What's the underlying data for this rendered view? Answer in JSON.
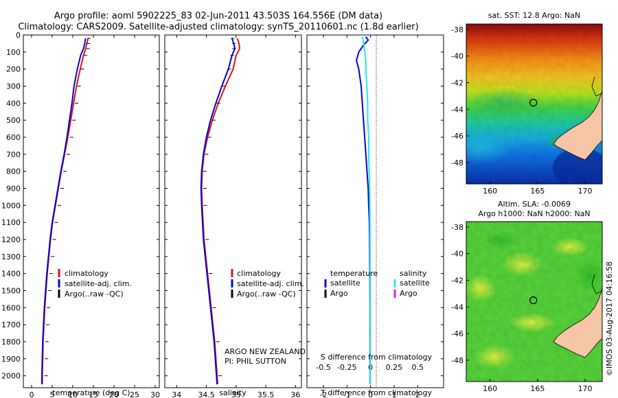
{
  "figure": {
    "title_line1": "Argo profile: aoml 5902225_83 02-Jun-2011 43.503S 164.556E (DM data)",
    "title_line2": "Climatology: CARS2009. Satellite-adjusted climatology: synTS_20110601.nc (1.8d earlier)",
    "credit": "©IMOS 03-Aug-2017 04:16:58",
    "float_group_line1": "ARGO NEW ZEALAND",
    "float_group_line2": "PI: PHIL SUTTON"
  },
  "colors": {
    "climatology": "#e01010",
    "satellite": "#0000dd",
    "argo": "#000000",
    "satellite_salinity": "#22e6f0",
    "argo_salinity": "#e020e0",
    "land": "#f5c6a5"
  },
  "chart_data": [
    {
      "id": "temperature",
      "type": "line",
      "xlabel": "temperature (deg C)",
      "ylabel": "",
      "xlim": [
        -2,
        31
      ],
      "ylim": [
        2070,
        0
      ],
      "xticks": [
        0,
        5,
        10,
        15,
        20,
        25,
        30
      ],
      "yticks": [
        0,
        100,
        200,
        300,
        400,
        500,
        600,
        700,
        800,
        900,
        1000,
        1100,
        1200,
        1300,
        1400,
        1500,
        1600,
        1700,
        1800,
        1900,
        2000
      ],
      "legend": [
        "climatology",
        "satellite-adj. clim.",
        "Argo(..raw -QC)"
      ],
      "series": [
        {
          "name": "climatology",
          "depth": [
            20,
            50,
            80,
            120,
            200,
            300,
            400,
            500,
            600,
            700,
            800,
            900,
            1000,
            1100,
            1200,
            1300,
            1400,
            1500,
            1600,
            1700,
            1800,
            1900,
            2000,
            2050
          ],
          "values": [
            13.7,
            13.4,
            13.1,
            12.6,
            11.8,
            10.9,
            10.2,
            9.5,
            8.8,
            8.0,
            7.2,
            6.5,
            5.8,
            5.1,
            4.6,
            4.2,
            3.8,
            3.5,
            3.2,
            3.0,
            2.8,
            2.7,
            2.6,
            2.6
          ]
        },
        {
          "name": "satellite-adj. clim.",
          "depth": [
            20,
            50,
            80,
            120,
            200,
            300,
            400,
            500,
            600,
            700,
            800,
            900,
            1000,
            1100,
            1200,
            1300,
            1400,
            1500,
            1600,
            1700,
            1800,
            1900,
            2000,
            2050
          ],
          "values": [
            13.1,
            12.9,
            12.6,
            11.9,
            11.1,
            10.3,
            9.8,
            9.2,
            8.6,
            7.9,
            7.1,
            6.4,
            5.7,
            5.0,
            4.5,
            4.1,
            3.7,
            3.4,
            3.1,
            2.9,
            2.7,
            2.6,
            2.5,
            2.5
          ]
        },
        {
          "name": "Argo(..raw -QC)",
          "depth": [
            20,
            50,
            80,
            120,
            200,
            300,
            400,
            500,
            600,
            700,
            800,
            900,
            1000,
            1100,
            1200,
            1300,
            1400,
            1500,
            1600,
            1700,
            1800,
            1900,
            2000
          ],
          "values": [
            13.0,
            12.9,
            12.8,
            12.2,
            11.4,
            10.6,
            10.0,
            9.4,
            8.8,
            8.0,
            7.2,
            6.5,
            5.8,
            5.1,
            4.6,
            4.2,
            3.8,
            3.5,
            3.2,
            3.0,
            2.8,
            2.7,
            2.6
          ]
        }
      ]
    },
    {
      "id": "salinity",
      "type": "line",
      "xlabel": "salinity",
      "ylabel": "",
      "xlim": [
        33.8,
        36.1
      ],
      "ylim": [
        2070,
        0
      ],
      "xticks": [
        34,
        34.5,
        35,
        35.5,
        36
      ],
      "legend": [
        "climatology",
        "satellite-adj. clim.",
        "Argo(..raw -QC)"
      ],
      "series": [
        {
          "name": "climatology",
          "depth": [
            20,
            50,
            80,
            120,
            200,
            300,
            400,
            500,
            600,
            700,
            800,
            900,
            1000,
            1200,
            1400,
            1600,
            1800,
            2000,
            2050
          ],
          "values": [
            35.02,
            35.05,
            35.06,
            35.0,
            34.95,
            34.82,
            34.7,
            34.6,
            34.52,
            34.46,
            34.43,
            34.42,
            34.43,
            34.46,
            34.52,
            34.58,
            34.64,
            34.68,
            34.69
          ]
        },
        {
          "name": "satellite-adj. clim.",
          "depth": [
            20,
            50,
            80,
            120,
            200,
            300,
            400,
            500,
            600,
            700,
            800,
            900,
            1000,
            1200,
            1400,
            1600,
            1800,
            2000,
            2050
          ],
          "values": [
            34.93,
            34.96,
            34.98,
            34.93,
            34.87,
            34.76,
            34.66,
            34.57,
            34.5,
            34.45,
            34.42,
            34.41,
            34.42,
            34.45,
            34.51,
            34.57,
            34.63,
            34.67,
            34.68
          ]
        },
        {
          "name": "Argo(..raw -QC)",
          "depth": [
            20,
            50,
            80,
            120,
            200,
            300,
            400,
            500,
            600,
            700,
            800,
            900,
            1000,
            1200,
            1400,
            1600,
            1800,
            2000
          ],
          "values": [
            34.88,
            34.9,
            34.9,
            34.87,
            34.82,
            34.73,
            34.64,
            34.56,
            34.49,
            34.44,
            34.41,
            34.41,
            34.42,
            34.45,
            34.51,
            34.57,
            34.63,
            34.67
          ]
        }
      ]
    },
    {
      "id": "difference",
      "type": "line",
      "xlabel": "T difference from climatology",
      "top_label": "S difference from climatology",
      "xlim": [
        -2.7,
        3.1
      ],
      "ylim": [
        2070,
        0
      ],
      "xticks": [
        -2,
        -1,
        0,
        1,
        2
      ],
      "top_ticks_label": [
        "-0.5",
        "-0.25",
        "0",
        "0.25",
        "0.5"
      ],
      "top_ticks": [
        -0.5,
        -0.25,
        0,
        0.25,
        0.5
      ],
      "legend_temperature_heading": "temperature",
      "legend_salinity_heading": "salinity",
      "legend_satellite": "satellite",
      "legend_argo": "Argo",
      "series": [
        {
          "name": "temperature satellite",
          "depth": [
            10,
            30,
            60,
            100,
            150,
            200,
            300,
            400,
            500,
            600,
            700,
            800,
            900,
            1000,
            1100,
            1200,
            1400,
            1600,
            1800,
            2000,
            2050
          ],
          "values": [
            -0.2,
            -0.1,
            -0.3,
            -0.5,
            -0.6,
            -0.5,
            -0.4,
            -0.35,
            -0.3,
            -0.25,
            -0.2,
            -0.15,
            -0.1,
            -0.08,
            -0.05,
            -0.04,
            -0.03,
            -0.02,
            -0.02,
            -0.02,
            -0.02
          ]
        },
        {
          "name": "salinity satellite",
          "depth": [
            10,
            30,
            60,
            100,
            150,
            200,
            300,
            400,
            500,
            600,
            700,
            800,
            900,
            1000,
            1100,
            1200,
            1400,
            1600,
            1800,
            2000,
            2050
          ],
          "values": [
            -0.09,
            -0.08,
            -0.07,
            -0.06,
            -0.05,
            -0.05,
            -0.04,
            -0.03,
            -0.03,
            -0.02,
            -0.02,
            -0.015,
            -0.01,
            -0.008,
            -0.006,
            -0.005,
            -0.004,
            -0.003,
            -0.003,
            -0.003,
            -0.003
          ]
        }
      ]
    },
    {
      "id": "sst-map",
      "type": "heatmap",
      "title": "sat. SST: 12.8 Argo: NaN",
      "xlim": [
        157.5,
        171.8
      ],
      "ylim": [
        -49.6,
        -37.6
      ],
      "xticks": [
        160,
        165,
        170
      ],
      "yticks": [
        -38,
        -40,
        -42,
        -44,
        -46,
        -48
      ],
      "argo_position": {
        "lon": 164.556,
        "lat": -43.503
      }
    },
    {
      "id": "sla-map",
      "type": "heatmap",
      "title_line1": "Altim. SLA: -0.0069",
      "title_line2": "Argo h1000: NaN h2000: NaN",
      "xlim": [
        157.5,
        171.8
      ],
      "ylim": [
        -49.6,
        -37.6
      ],
      "xticks": [
        160,
        165,
        170
      ],
      "yticks": [
        -38,
        -40,
        -42,
        -44,
        -46,
        -48
      ],
      "argo_position": {
        "lon": 164.556,
        "lat": -43.503
      }
    }
  ]
}
